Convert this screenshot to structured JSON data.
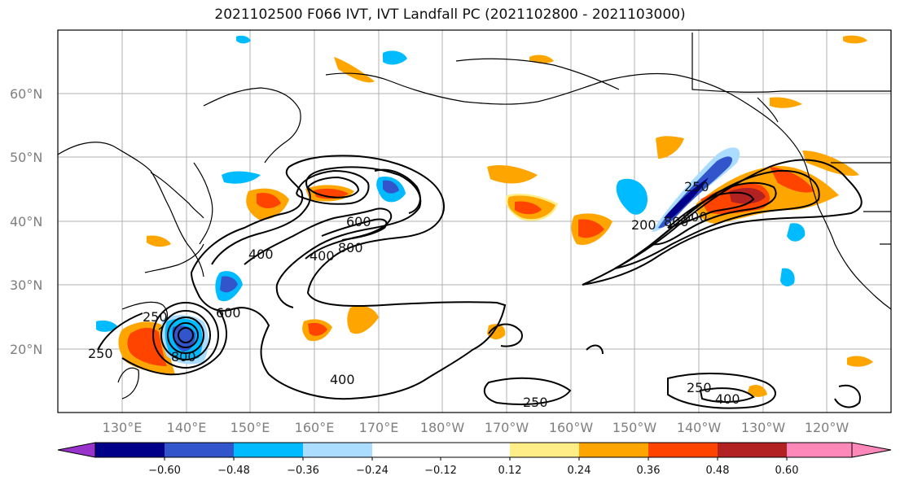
{
  "title": "2021102500 F066 IVT, IVT Landfall PC (2021102800 - 2021103000)",
  "map": {
    "lon_labels": [
      "130°E",
      "140°E",
      "150°E",
      "160°E",
      "170°E",
      "180°W",
      "170°W",
      "160°W",
      "150°W",
      "140°W",
      "130°W",
      "120°W"
    ],
    "lat_labels": [
      "60°N",
      "50°N",
      "40°N",
      "30°N",
      "20°N"
    ],
    "lon_label_color": "#7f7f7f",
    "contour_labels": [
      "250",
      "400",
      "600",
      "800",
      "250",
      "400",
      "600",
      "800",
      "250",
      "400",
      "600",
      "800",
      "200",
      "250",
      "400",
      "250"
    ]
  },
  "colorbar": {
    "colors": [
      "#9933cc",
      "#000088",
      "#3355cc",
      "#00bbff",
      "#aaddff",
      "#ffffff",
      "#ffee88",
      "#ffa500",
      "#ff4400",
      "#b22222",
      "#ff88bb"
    ],
    "tick_labels": [
      "−0.60",
      "−0.48",
      "−0.36",
      "−0.24",
      "−0.12",
      "0.12",
      "0.24",
      "0.36",
      "0.48",
      "0.60"
    ]
  }
}
